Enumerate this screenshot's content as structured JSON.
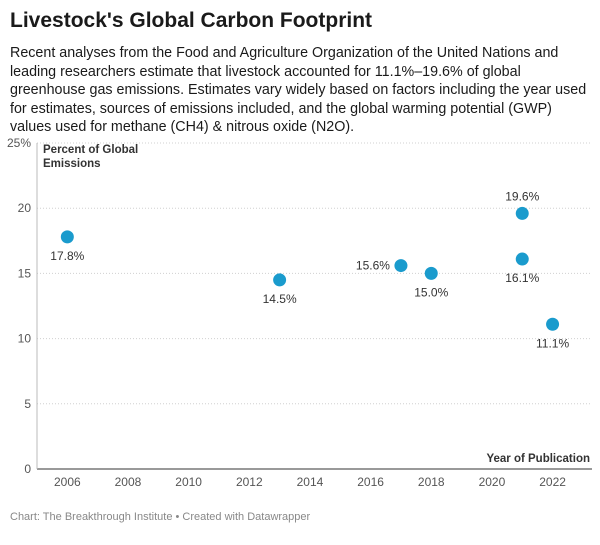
{
  "header": {
    "title": "Livestock's Global Carbon Footprint",
    "description": "Recent analyses from the Food and Agriculture Organization of the United Nations and leading researchers estimate that livestock accounted for 11.1%–19.6% of global greenhouse gas emissions. Estimates vary widely based on factors including the year used for estimates, sources of emissions included, and the global warming potential (GWP) values used for methane (CH4) & nitrous oxide (N2O)."
  },
  "chart_data": {
    "type": "scatter",
    "title": "Livestock's Global Carbon Footprint",
    "xlabel": "Year of Publication",
    "ylabel": "Percent of Global Emissions",
    "ylabel_lines": [
      "Percent of Global",
      "Emissions"
    ],
    "xlim": [
      2005,
      2023.3
    ],
    "ylim": [
      0,
      25
    ],
    "x_ticks": [
      2006,
      2008,
      2010,
      2012,
      2014,
      2016,
      2018,
      2020,
      2022
    ],
    "y_ticks": [
      0,
      5,
      10,
      15,
      20,
      25
    ],
    "y_tick_labels": [
      "0",
      "5",
      "10",
      "15",
      "20",
      "25%"
    ],
    "grid": "horizontal dotted",
    "point_color": "#1a9bcd",
    "points": [
      {
        "x": 2006,
        "y": 17.8,
        "label": "17.8%",
        "label_pos": "below"
      },
      {
        "x": 2013,
        "y": 14.5,
        "label": "14.5%",
        "label_pos": "below"
      },
      {
        "x": 2017,
        "y": 15.6,
        "label": "15.6%",
        "label_pos": "left"
      },
      {
        "x": 2018,
        "y": 15.0,
        "label": "15.0%",
        "label_pos": "below"
      },
      {
        "x": 2021,
        "y": 19.6,
        "label": "19.6%",
        "label_pos": "above"
      },
      {
        "x": 2021,
        "y": 16.1,
        "label": "16.1%",
        "label_pos": "below"
      },
      {
        "x": 2022,
        "y": 11.1,
        "label": "11.1%",
        "label_pos": "below"
      }
    ]
  },
  "footer": {
    "credit": "Chart: The Breakthrough Institute • Created with Datawrapper"
  }
}
